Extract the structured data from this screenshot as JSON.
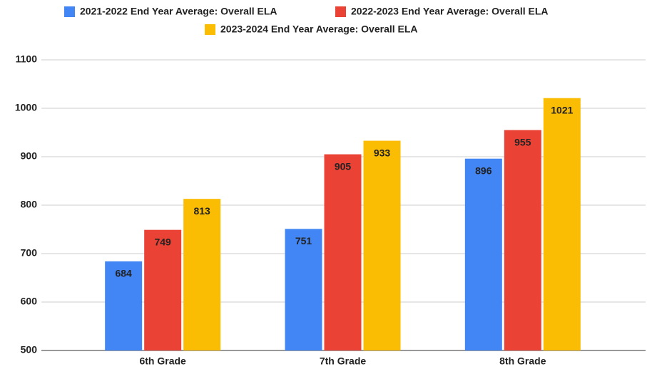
{
  "chart_data": {
    "type": "bar",
    "categories": [
      "6th Grade",
      "7th Grade",
      "8th Grade"
    ],
    "series": [
      {
        "name": "2021-2022 End Year Average: Overall ELA",
        "color": "#4285f4",
        "values": [
          684,
          751,
          896
        ]
      },
      {
        "name": "2022-2023 End Year Average: Overall ELA",
        "color": "#ea4335",
        "values": [
          749,
          905,
          955
        ]
      },
      {
        "name": "2023-2024 End Year Average: Overall ELA",
        "color": "#fbbc04",
        "values": [
          813,
          933,
          1021
        ]
      }
    ],
    "ylim": [
      500,
      1100
    ],
    "yticks": [
      500,
      600,
      700,
      800,
      900,
      1000,
      1100
    ],
    "grid": true,
    "legend": "top"
  }
}
